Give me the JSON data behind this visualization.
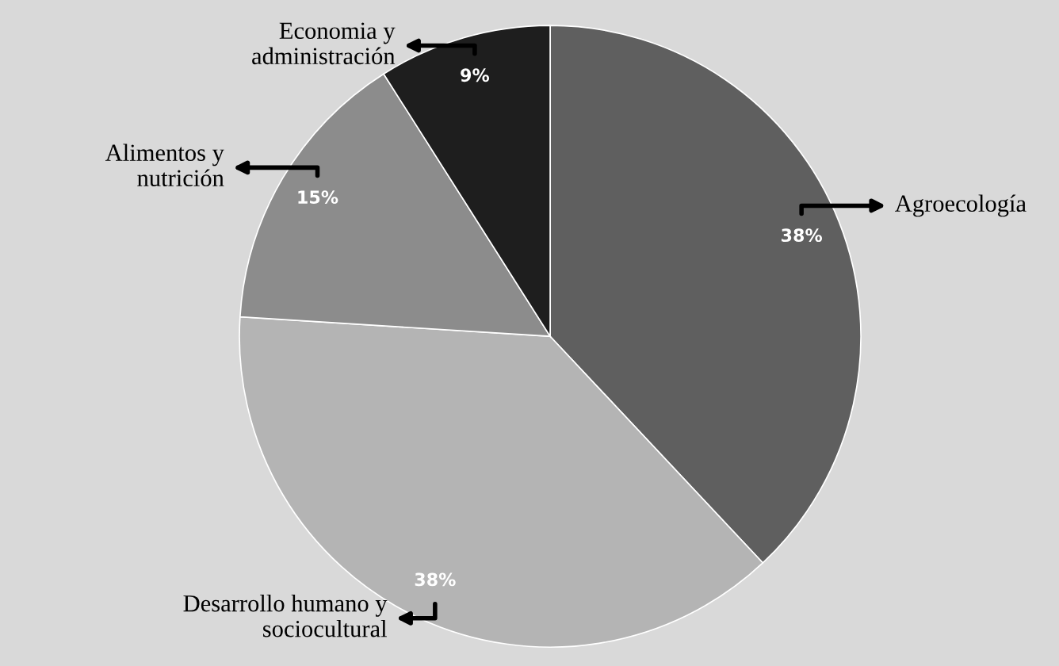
{
  "chart_data": {
    "type": "pie",
    "categories": [
      "Agroecología",
      "Desarrollo humano y\nsociocultural",
      "Alimentos y\nnutrición",
      "Economia y\nadministración"
    ],
    "values": [
      38,
      38,
      15,
      9
    ],
    "value_labels": [
      "38%",
      "38%",
      "15%",
      "9%"
    ],
    "colors": [
      "#5f5f5f",
      "#b4b4b4",
      "#8c8c8c",
      "#1e1e1e"
    ],
    "legend": false
  }
}
